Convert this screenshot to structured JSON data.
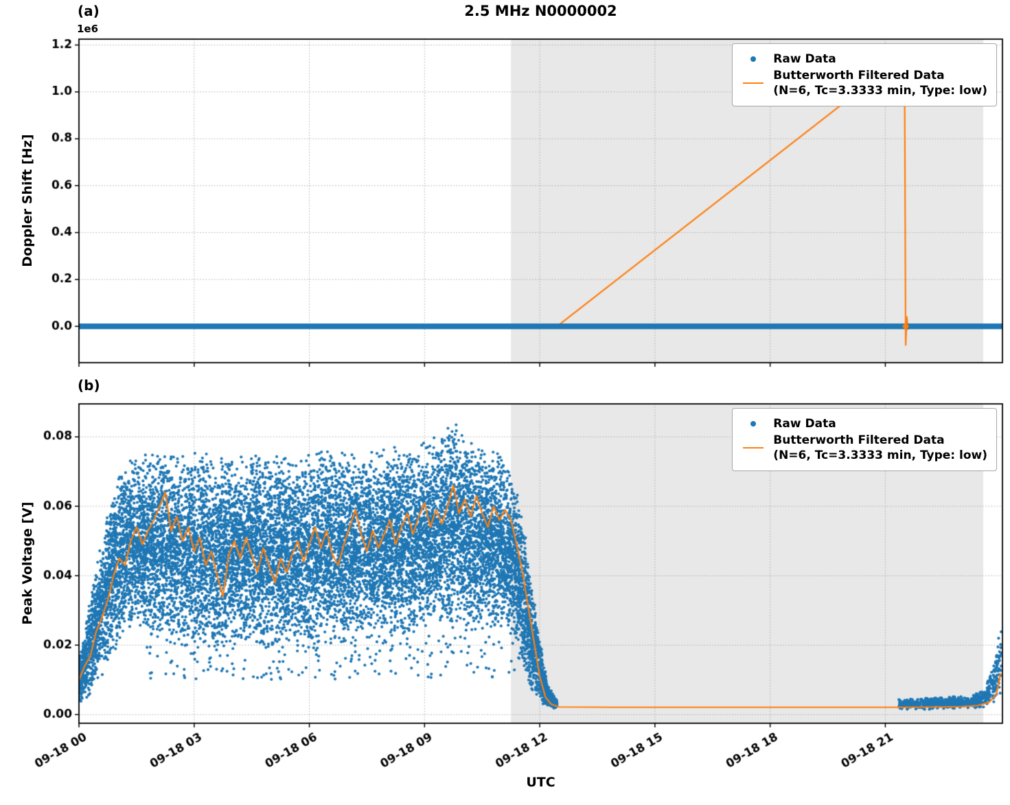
{
  "title": "2.5 MHz N0000002",
  "xlabel": "UTC",
  "legend": {
    "raw_label": "Raw Data",
    "filtered_label_line1": "Butterworth Filtered Data",
    "filtered_label_line2": "(N=6, Tc=3.3333 min, Type: low)"
  },
  "colors": {
    "raw": "#1f77b4",
    "filtered": "#ff7f0e",
    "shade": "#e8e8e8",
    "grid": "#aaaaaa",
    "frame": "#000000"
  },
  "chart_data": [
    {
      "type": "line",
      "panel_label": "(a)",
      "ylabel": "Doppler Shift [Hz]",
      "y_offset_text": "1e6",
      "ylim": [
        -155000,
        1225000
      ],
      "yticks": [
        0,
        200000,
        400000,
        600000,
        800000,
        1000000,
        1200000
      ],
      "ytick_labels": [
        "0.0",
        "0.2",
        "0.4",
        "0.6",
        "0.8",
        "1.0",
        "1.2"
      ],
      "xlim_hours": [
        0,
        24.05
      ],
      "xticks_hours": [
        0,
        3,
        6,
        9,
        12,
        15,
        18,
        21
      ],
      "xtick_labels": [
        "09-18 00",
        "09-18 03",
        "09-18 06",
        "09-18 09",
        "09-18 12",
        "09-18 15",
        "09-18 18",
        "09-18 21"
      ],
      "shade_region_hours": [
        11.25,
        23.55
      ],
      "raw_band": {
        "t": [
          0,
          24.05
        ],
        "center": 0,
        "half_width": 12000
      },
      "raw_marker_at": [
        21.53,
        0
      ],
      "filtered_line": [
        [
          0,
          0
        ],
        [
          12.45,
          0
        ],
        [
          21.5,
          1155000
        ],
        [
          21.53,
          -80000
        ],
        [
          21.56,
          40000
        ],
        [
          21.59,
          -12000
        ],
        [
          21.63,
          0
        ],
        [
          24.05,
          0
        ]
      ]
    },
    {
      "type": "scatter",
      "panel_label": "(b)",
      "ylabel": "Peak Voltage [V]",
      "ylim": [
        -0.0025,
        0.0895
      ],
      "yticks": [
        0,
        0.02,
        0.04,
        0.06,
        0.08
      ],
      "ytick_labels": [
        "0.00",
        "0.02",
        "0.04",
        "0.06",
        "0.08"
      ],
      "xlim_hours": [
        0,
        24.05
      ],
      "xticks_hours": [
        0,
        3,
        6,
        9,
        12,
        15,
        18,
        21
      ],
      "xtick_labels": [
        "09-18 00",
        "09-18 03",
        "09-18 06",
        "09-18 09",
        "09-18 12",
        "09-18 15",
        "09-18 18",
        "09-18 21"
      ],
      "shade_region_hours": [
        11.25,
        23.55
      ],
      "raw_scatter_envelopes": [
        {
          "n": 14000,
          "points": [
            [
              0.0,
              0.003,
              0.016
            ],
            [
              0.2,
              0.004,
              0.028
            ],
            [
              0.4,
              0.007,
              0.042
            ],
            [
              0.6,
              0.011,
              0.052
            ],
            [
              0.8,
              0.016,
              0.062
            ],
            [
              1.0,
              0.019,
              0.068
            ],
            [
              1.3,
              0.024,
              0.074
            ],
            [
              1.8,
              0.022,
              0.076
            ],
            [
              2.5,
              0.019,
              0.077
            ],
            [
              3.5,
              0.018,
              0.075
            ],
            [
              4.5,
              0.019,
              0.076
            ],
            [
              5.5,
              0.018,
              0.075
            ],
            [
              6.5,
              0.02,
              0.077
            ],
            [
              7.5,
              0.021,
              0.076
            ],
            [
              8.5,
              0.021,
              0.078
            ],
            [
              9.3,
              0.023,
              0.08
            ],
            [
              9.7,
              0.024,
              0.086
            ],
            [
              10.2,
              0.022,
              0.079
            ],
            [
              10.9,
              0.024,
              0.077
            ],
            [
              11.3,
              0.02,
              0.071
            ],
            [
              11.55,
              0.012,
              0.058
            ],
            [
              11.8,
              0.005,
              0.038
            ],
            [
              12.0,
              0.003,
              0.022
            ],
            [
              12.2,
              0.002,
              0.009
            ],
            [
              12.45,
              0.0015,
              0.004
            ]
          ]
        },
        {
          "n": 800,
          "points": [
            [
              21.35,
              0.0014,
              0.0045
            ],
            [
              22.5,
              0.0015,
              0.005
            ],
            [
              23.2,
              0.0018,
              0.0055
            ],
            [
              23.6,
              0.002,
              0.008
            ],
            [
              23.85,
              0.003,
              0.016
            ],
            [
              23.98,
              0.005,
              0.028
            ],
            [
              24.02,
              0.007,
              0.028
            ]
          ]
        }
      ],
      "filtered_line": [
        [
          0,
          0.01
        ],
        [
          0.15,
          0.014
        ],
        [
          0.3,
          0.017
        ],
        [
          0.45,
          0.024
        ],
        [
          0.6,
          0.028
        ],
        [
          0.75,
          0.033
        ],
        [
          0.9,
          0.04
        ],
        [
          1.05,
          0.045
        ],
        [
          1.2,
          0.043
        ],
        [
          1.35,
          0.05
        ],
        [
          1.5,
          0.054
        ],
        [
          1.65,
          0.049
        ],
        [
          1.8,
          0.053
        ],
        [
          1.95,
          0.056
        ],
        [
          2.1,
          0.06
        ],
        [
          2.25,
          0.064
        ],
        [
          2.4,
          0.053
        ],
        [
          2.55,
          0.057
        ],
        [
          2.7,
          0.05
        ],
        [
          2.85,
          0.054
        ],
        [
          3.0,
          0.047
        ],
        [
          3.15,
          0.051
        ],
        [
          3.3,
          0.043
        ],
        [
          3.45,
          0.047
        ],
        [
          3.6,
          0.04
        ],
        [
          3.75,
          0.034
        ],
        [
          3.9,
          0.046
        ],
        [
          4.05,
          0.05
        ],
        [
          4.2,
          0.045
        ],
        [
          4.35,
          0.051
        ],
        [
          4.5,
          0.046
        ],
        [
          4.65,
          0.041
        ],
        [
          4.8,
          0.048
        ],
        [
          4.95,
          0.043
        ],
        [
          5.1,
          0.038
        ],
        [
          5.25,
          0.045
        ],
        [
          5.4,
          0.041
        ],
        [
          5.55,
          0.046
        ],
        [
          5.7,
          0.05
        ],
        [
          5.85,
          0.044
        ],
        [
          6.0,
          0.049
        ],
        [
          6.15,
          0.054
        ],
        [
          6.3,
          0.048
        ],
        [
          6.45,
          0.053
        ],
        [
          6.6,
          0.046
        ],
        [
          6.75,
          0.043
        ],
        [
          6.9,
          0.049
        ],
        [
          7.05,
          0.054
        ],
        [
          7.2,
          0.059
        ],
        [
          7.35,
          0.052
        ],
        [
          7.5,
          0.047
        ],
        [
          7.65,
          0.053
        ],
        [
          7.8,
          0.048
        ],
        [
          7.95,
          0.052
        ],
        [
          8.1,
          0.056
        ],
        [
          8.25,
          0.049
        ],
        [
          8.4,
          0.054
        ],
        [
          8.55,
          0.058
        ],
        [
          8.7,
          0.052
        ],
        [
          8.85,
          0.057
        ],
        [
          9.0,
          0.061
        ],
        [
          9.15,
          0.054
        ],
        [
          9.3,
          0.059
        ],
        [
          9.45,
          0.055
        ],
        [
          9.6,
          0.06
        ],
        [
          9.75,
          0.066
        ],
        [
          9.9,
          0.058
        ],
        [
          10.05,
          0.062
        ],
        [
          10.2,
          0.057
        ],
        [
          10.35,
          0.063
        ],
        [
          10.5,
          0.058
        ],
        [
          10.65,
          0.054
        ],
        [
          10.8,
          0.06
        ],
        [
          10.95,
          0.056
        ],
        [
          11.1,
          0.059
        ],
        [
          11.25,
          0.056
        ],
        [
          11.4,
          0.049
        ],
        [
          11.55,
          0.041
        ],
        [
          11.7,
          0.031
        ],
        [
          11.85,
          0.021
        ],
        [
          12.0,
          0.011
        ],
        [
          12.15,
          0.005
        ],
        [
          12.3,
          0.003
        ],
        [
          12.5,
          0.0022
        ],
        [
          14,
          0.0021
        ],
        [
          16,
          0.0021
        ],
        [
          18,
          0.0021
        ],
        [
          20,
          0.0021
        ],
        [
          21.5,
          0.0021
        ],
        [
          22.5,
          0.0022
        ],
        [
          23.0,
          0.0023
        ],
        [
          23.4,
          0.0026
        ],
        [
          23.7,
          0.0035
        ],
        [
          23.9,
          0.006
        ],
        [
          24.0,
          0.012
        ]
      ]
    }
  ]
}
